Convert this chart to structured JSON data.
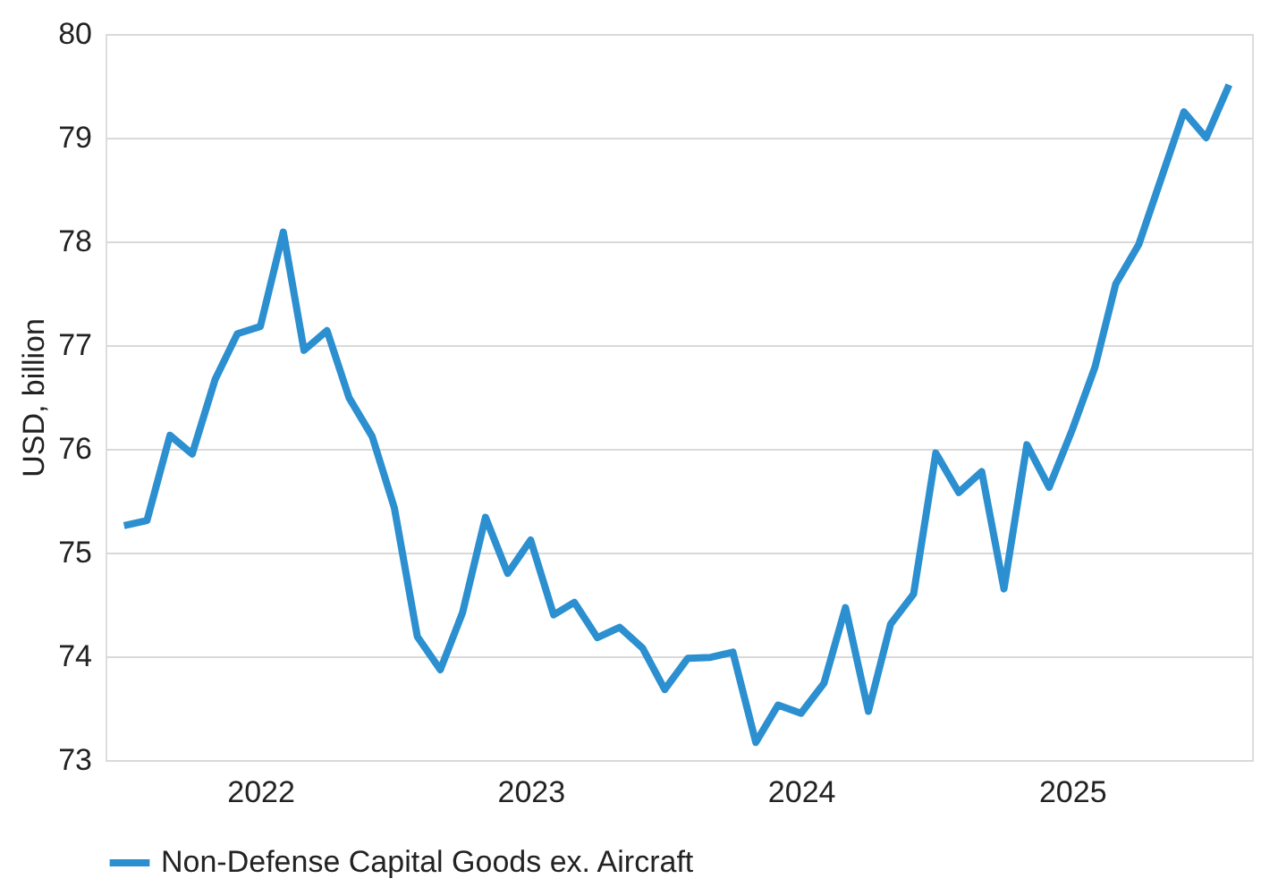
{
  "chart_data": {
    "type": "line",
    "ylabel": "USD, billion",
    "x": [
      "2021-07",
      "2021-08",
      "2021-09",
      "2021-10",
      "2021-11",
      "2021-12",
      "2022-01",
      "2022-02",
      "2022-03",
      "2022-04",
      "2022-05",
      "2022-06",
      "2022-07",
      "2022-08",
      "2022-09",
      "2022-10",
      "2022-11",
      "2022-12",
      "2023-01",
      "2023-02",
      "2023-03",
      "2023-04",
      "2023-05",
      "2023-06",
      "2023-07",
      "2023-08",
      "2023-09",
      "2023-10",
      "2023-11",
      "2023-12",
      "2024-01",
      "2024-02",
      "2024-03",
      "2024-04",
      "2024-05",
      "2024-06",
      "2024-07",
      "2024-08",
      "2024-09",
      "2024-10",
      "2024-11",
      "2024-12",
      "2025-01",
      "2025-02",
      "2025-03",
      "2025-04",
      "2025-05",
      "2025-06",
      "2025-07",
      "2025-08"
    ],
    "series": [
      {
        "name": "Non-Defense Capital Goods ex. Aircraft",
        "color": "#2b8fd0",
        "values": [
          75.26,
          75.31,
          76.13,
          75.95,
          76.67,
          77.11,
          77.18,
          78.09,
          76.95,
          77.14,
          76.49,
          76.12,
          75.43,
          74.19,
          73.87,
          74.42,
          75.34,
          74.8,
          75.12,
          74.4,
          74.52,
          74.18,
          74.28,
          74.08,
          73.68,
          73.98,
          73.99,
          74.04,
          73.17,
          73.53,
          73.45,
          73.74,
          74.47,
          73.47,
          74.31,
          74.6,
          75.96,
          75.58,
          75.78,
          74.65,
          76.04,
          75.63,
          76.18,
          76.79,
          77.59,
          77.97,
          78.6,
          79.25,
          79.0,
          79.51
        ]
      }
    ],
    "xlim": [
      "2021-06-06",
      "2025-09-01"
    ],
    "xticks": [
      "2022",
      "2023",
      "2024",
      "2025"
    ],
    "ylim": [
      73,
      80
    ],
    "yticks": [
      73,
      74,
      75,
      76,
      77,
      78,
      79,
      80
    ],
    "grid": "y",
    "legend": "bottom",
    "marker": "none",
    "line_style": "solid"
  }
}
